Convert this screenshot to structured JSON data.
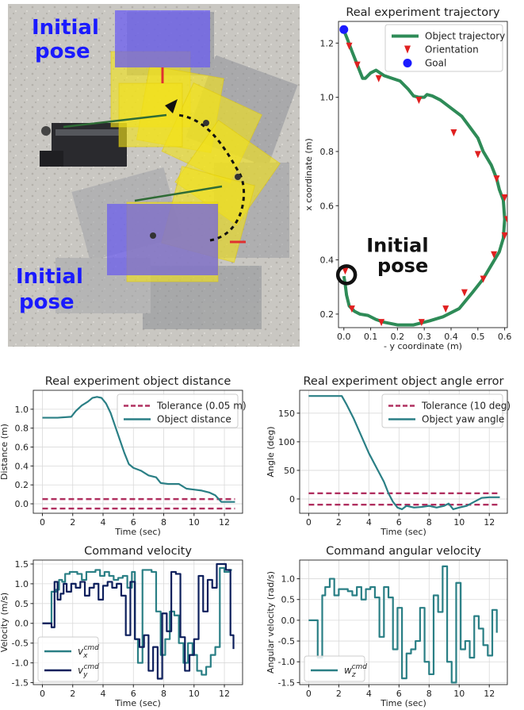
{
  "photo": {
    "label_top_line1": "Initial",
    "label_top_line2": "pose",
    "label_bottom_line1": "Initial",
    "label_bottom_line2": "pose"
  },
  "chart_data": [
    {
      "id": "trajectory",
      "type": "line",
      "title": "Real experiment trajectory",
      "xlabel": "- y coordinate (m)",
      "ylabel": "x coordinate (m)",
      "xlim": [
        -0.02,
        0.61
      ],
      "ylim": [
        0.15,
        1.28
      ],
      "xticks": [
        "0.0",
        "0.1",
        "0.2",
        "0.3",
        "0.4",
        "0.5",
        "0.6"
      ],
      "yticks": [
        "0.2",
        "0.4",
        "0.6",
        "0.8",
        "1.0",
        "1.2"
      ],
      "annotation_line1": "Initial",
      "annotation_line2": "pose",
      "legend": [
        "Object trajectory",
        "Orientation",
        "Goal"
      ],
      "series": [
        {
          "name": "Object trajectory",
          "x": [
            0.0,
            0.005,
            0.01,
            0.02,
            0.04,
            0.06,
            0.09,
            0.12,
            0.15,
            0.2,
            0.26,
            0.32,
            0.37,
            0.43,
            0.48,
            0.52,
            0.55,
            0.58,
            0.595,
            0.6,
            0.595,
            0.58,
            0.57,
            0.55,
            0.52,
            0.5,
            0.47,
            0.44,
            0.4,
            0.36,
            0.33,
            0.31,
            0.3,
            0.28,
            0.26,
            0.24,
            0.21,
            0.18,
            0.15,
            0.12,
            0.1,
            0.08,
            0.07,
            0.05,
            0.03,
            0.015,
            0.005,
            0.0
          ],
          "y": [
            0.34,
            0.31,
            0.27,
            0.23,
            0.21,
            0.2,
            0.195,
            0.18,
            0.17,
            0.16,
            0.16,
            0.175,
            0.19,
            0.22,
            0.28,
            0.33,
            0.38,
            0.43,
            0.48,
            0.55,
            0.62,
            0.66,
            0.7,
            0.75,
            0.8,
            0.85,
            0.89,
            0.93,
            0.96,
            0.99,
            1.005,
            1.01,
            1.0,
            1.0,
            1.005,
            1.03,
            1.06,
            1.07,
            1.08,
            1.1,
            1.09,
            1.07,
            1.07,
            1.12,
            1.17,
            1.21,
            1.235,
            1.245
          ]
        },
        {
          "name": "Orientation",
          "x": [
            0.005,
            0.03,
            0.14,
            0.29,
            0.38,
            0.45,
            0.52,
            0.56,
            0.6,
            0.61,
            0.6,
            0.57,
            0.5,
            0.41,
            0.28,
            0.13,
            0.05,
            0.02
          ],
          "y": [
            0.36,
            0.22,
            0.17,
            0.17,
            0.22,
            0.28,
            0.33,
            0.42,
            0.49,
            0.55,
            0.63,
            0.7,
            0.79,
            0.87,
            0.99,
            1.07,
            1.12,
            1.19
          ]
        },
        {
          "name": "Goal",
          "x": [
            0.0
          ],
          "y": [
            1.25
          ]
        }
      ]
    },
    {
      "id": "distance",
      "type": "line",
      "title": "Real experiment object distance",
      "xlabel": "Time (sec)",
      "ylabel": "Distance (m)",
      "xlim": [
        -0.6,
        13.2
      ],
      "ylim": [
        -0.1,
        1.2
      ],
      "xticks": [
        "0",
        "2",
        "4",
        "6",
        "8",
        "10",
        "12"
      ],
      "yticks": [
        "0.0",
        "0.2",
        "0.4",
        "0.6",
        "0.8",
        "1.0"
      ],
      "legend": [
        "Tolerance (0.05 m)",
        "Object distance"
      ],
      "series": [
        {
          "name": "Tolerance (0.05 m)",
          "x": [
            0,
            12.7
          ],
          "y": [
            0.05,
            0.05
          ]
        },
        {
          "name": "Tolerance (0.05 m)",
          "x": [
            0,
            12.7
          ],
          "y": [
            -0.05,
            -0.05
          ]
        },
        {
          "name": "Object distance",
          "x": [
            0,
            1,
            1.9,
            2.2,
            2.6,
            3.0,
            3.3,
            3.6,
            3.9,
            4.2,
            4.5,
            4.8,
            5.1,
            5.4,
            5.7,
            6.0,
            6.5,
            7.0,
            7.5,
            7.8,
            8.3,
            9.0,
            9.5,
            10.0,
            10.5,
            11.0,
            11.4,
            11.8,
            12.7
          ],
          "y": [
            0.91,
            0.91,
            0.92,
            0.98,
            1.04,
            1.08,
            1.12,
            1.13,
            1.12,
            1.06,
            0.96,
            0.82,
            0.68,
            0.54,
            0.42,
            0.38,
            0.35,
            0.3,
            0.28,
            0.22,
            0.21,
            0.21,
            0.16,
            0.15,
            0.14,
            0.12,
            0.09,
            0.02,
            0.02
          ]
        }
      ]
    },
    {
      "id": "angle",
      "type": "line",
      "title": "Real experiment object angle error",
      "xlabel": "Time (sec)",
      "ylabel": "Angle (deg)",
      "xlim": [
        -0.6,
        13.2
      ],
      "ylim": [
        -25,
        190
      ],
      "xticks": [
        "0",
        "2",
        "4",
        "6",
        "8",
        "10",
        "12"
      ],
      "yticks": [
        "0",
        "50",
        "100",
        "150"
      ],
      "legend": [
        "Tolerance (10 deg)",
        "Object yaw angle"
      ],
      "series": [
        {
          "name": "Tolerance (10 deg)",
          "x": [
            0,
            12.7
          ],
          "y": [
            10,
            10
          ]
        },
        {
          "name": "Tolerance (10 deg)",
          "x": [
            0,
            12.7
          ],
          "y": [
            -10,
            -10
          ]
        },
        {
          "name": "Object yaw angle",
          "x": [
            0,
            1.0,
            2.2,
            2.5,
            3.0,
            3.5,
            4.0,
            4.5,
            5.0,
            5.3,
            5.6,
            5.9,
            6.2,
            6.5,
            7.0,
            7.5,
            8.0,
            8.5,
            9.0,
            9.3,
            9.6,
            10.0,
            10.5,
            11.0,
            11.5,
            12.0,
            12.7
          ],
          "y": [
            180,
            180,
            180,
            166,
            140,
            110,
            80,
            55,
            30,
            10,
            -5,
            -15,
            -18,
            -12,
            -15,
            -14,
            -12,
            -15,
            -12,
            -8,
            -18,
            -15,
            -12,
            -5,
            2,
            3,
            3
          ]
        }
      ]
    },
    {
      "id": "cmd_velocity",
      "type": "line",
      "title": "Command velocity",
      "xlabel": "Time (sec)",
      "ylabel": "Velocity (m/s)",
      "xlim": [
        -0.6,
        13.2
      ],
      "ylim": [
        -1.55,
        1.6
      ],
      "xticks": [
        "0",
        "2",
        "4",
        "6",
        "8",
        "10",
        "12"
      ],
      "yticks": [
        "-1.5",
        "-1.0",
        "-0.5",
        "0.0",
        "0.5",
        "1.0",
        "1.5"
      ],
      "legend": [
        "v_x^cmd",
        "v_y^cmd"
      ],
      "series": [
        {
          "name": "v_x^cmd",
          "x": [
            0,
            0.4,
            0.6,
            0.9,
            1.1,
            1.3,
            1.5,
            1.8,
            2.0,
            2.3,
            2.6,
            2.9,
            3.2,
            3.5,
            3.8,
            4.1,
            4.4,
            4.7,
            5.0,
            5.3,
            5.6,
            5.9,
            6.1,
            6.3,
            6.6,
            6.9,
            7.2,
            7.5,
            7.8,
            8.1,
            8.4,
            8.7,
            9.0,
            9.3,
            9.6,
            9.9,
            10.2,
            10.5,
            10.8,
            11.1,
            11.4,
            11.7,
            12.0,
            12.3,
            12.5
          ],
          "y": [
            0,
            0,
            0.8,
            0.85,
            1.1,
            1.05,
            1.25,
            1.3,
            1.3,
            1.25,
            1.1,
            1.3,
            1.3,
            1.35,
            1.2,
            1.3,
            1.2,
            1.1,
            1.15,
            1.2,
            0.9,
            1.3,
            -0.4,
            -1.0,
            1.35,
            1.35,
            1.3,
            0.3,
            -0.8,
            -0.4,
            0.3,
            0.2,
            -0.5,
            -1.0,
            -0.5,
            -0.8,
            -1.2,
            -1.3,
            -1.1,
            -0.8,
            -0.6,
            1.4,
            1.3,
            1.35,
            1.35
          ]
        },
        {
          "name": "v_y^cmd",
          "x": [
            0,
            0.4,
            0.6,
            0.8,
            1.0,
            1.2,
            1.4,
            1.6,
            1.9,
            2.2,
            2.5,
            2.8,
            3.1,
            3.4,
            3.7,
            4.0,
            4.3,
            4.6,
            4.9,
            5.2,
            5.5,
            5.8,
            6.1,
            6.4,
            6.7,
            7.0,
            7.3,
            7.6,
            7.9,
            8.2,
            8.5,
            8.8,
            9.1,
            9.4,
            9.7,
            10.0,
            10.3,
            10.6,
            10.9,
            11.2,
            11.5,
            11.8,
            12.1,
            12.4,
            12.6
          ],
          "y": [
            0,
            0,
            -0.1,
            1.05,
            0.6,
            0.75,
            1.0,
            0.8,
            1.0,
            0.9,
            1.05,
            0.7,
            0.9,
            1.0,
            0.6,
            0.95,
            1.05,
            0.9,
            1.0,
            0.7,
            -0.3,
            1.05,
            -0.4,
            -0.6,
            -0.3,
            -1.2,
            -0.6,
            -1.4,
            0.25,
            -0.2,
            1.3,
            1.25,
            -0.35,
            -1.2,
            -0.8,
            -0.4,
            1.2,
            0.3,
            1.1,
            0.9,
            1.5,
            1.5,
            1.35,
            -0.3,
            -0.65
          ]
        }
      ]
    },
    {
      "id": "cmd_angular",
      "type": "line",
      "title": "Command angular velocity",
      "xlabel": "Time (sec)",
      "ylabel": "Angular velocity (rad/s)",
      "xlim": [
        -0.6,
        13.2
      ],
      "ylim": [
        -1.55,
        1.45
      ],
      "xticks": [
        "0",
        "2",
        "4",
        "6",
        "8",
        "10",
        "12"
      ],
      "yticks": [
        "-1.5",
        "-1.0",
        "-0.5",
        "0.0",
        "0.5",
        "1.0"
      ],
      "legend": [
        "w_z^cmd"
      ],
      "series": [
        {
          "name": "w_z^cmd",
          "x": [
            0,
            0.3,
            0.6,
            0.9,
            1.1,
            1.4,
            1.7,
            2.0,
            2.3,
            2.6,
            2.9,
            3.2,
            3.5,
            3.8,
            4.1,
            4.4,
            4.7,
            5.0,
            5.3,
            5.6,
            5.9,
            6.2,
            6.5,
            6.8,
            7.1,
            7.4,
            7.7,
            8.0,
            8.3,
            8.6,
            8.9,
            9.2,
            9.5,
            9.8,
            10.1,
            10.4,
            10.7,
            11.0,
            11.3,
            11.6,
            11.9,
            12.2,
            12.5
          ],
          "y": [
            0,
            0,
            -0.9,
            0.6,
            0.8,
            1.0,
            0.6,
            0.75,
            0.75,
            0.7,
            0.6,
            0.8,
            0.5,
            0.75,
            0.8,
            0.55,
            -0.4,
            0.8,
            0.55,
            -0.7,
            0.3,
            -1.4,
            -0.8,
            -0.7,
            -0.5,
            0.3,
            -1.0,
            -1.3,
            0.6,
            0.2,
            1.3,
            -1.0,
            -1.5,
            0.9,
            -0.7,
            -0.5,
            -0.9,
            0.1,
            -0.2,
            -0.6,
            -0.85,
            0.25,
            -0.3
          ]
        }
      ]
    }
  ]
}
